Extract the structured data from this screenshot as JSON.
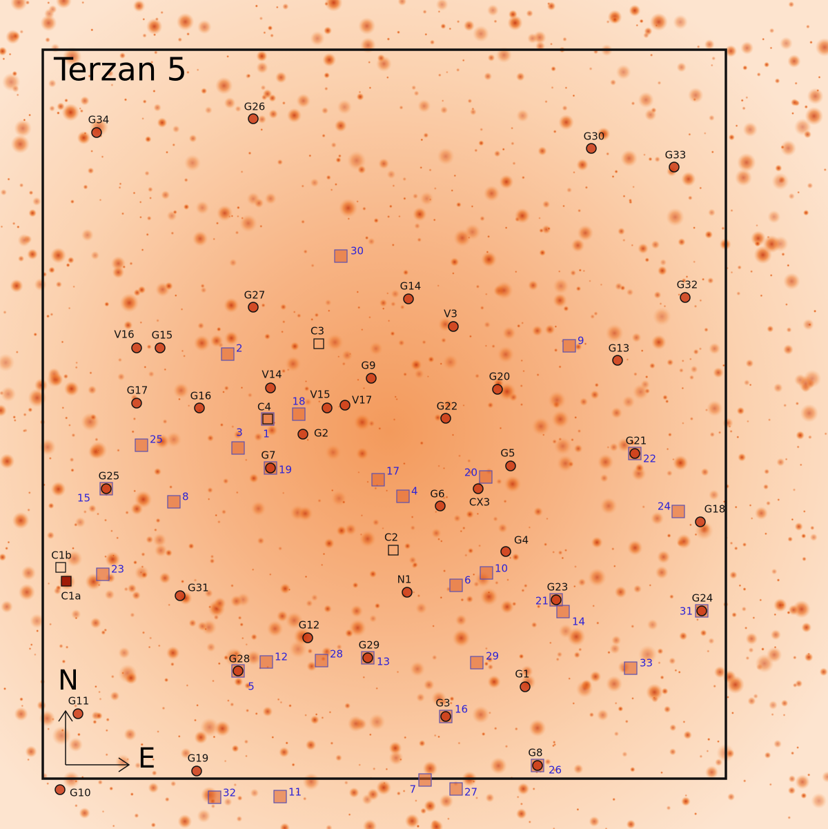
{
  "title": "Terzan 5",
  "compass": {
    "north": "N",
    "east": "E"
  },
  "circles": [
    "G34",
    "G26",
    "G30",
    "G33",
    "G27",
    "G14",
    "G32",
    "V3",
    "V16",
    "G15",
    "G13",
    "G9",
    "V14",
    "G20",
    "G17",
    "G16",
    "V15",
    "V17",
    "G22",
    "G2",
    "G7",
    "G5",
    "G21",
    "G25",
    "CX3",
    "G6",
    "G18",
    "G4",
    "N1",
    "G31",
    "G23",
    "G24",
    "G12",
    "G29",
    "G28",
    "G1",
    "G11",
    "G3",
    "G8",
    "G19",
    "G10"
  ],
  "named_squares": [
    "C3",
    "C4",
    "C2",
    "C1b",
    "C1a"
  ],
  "squares": [
    "30",
    "2",
    "9",
    "18",
    "1",
    "3",
    "25",
    "19",
    "17",
    "20",
    "4",
    "8",
    "15",
    "22",
    "24",
    "6",
    "10",
    "23",
    "21",
    "14",
    "31",
    "12",
    "28",
    "13",
    "29",
    "5",
    "33",
    "16",
    "26",
    "7",
    "27",
    "32",
    "11"
  ]
}
